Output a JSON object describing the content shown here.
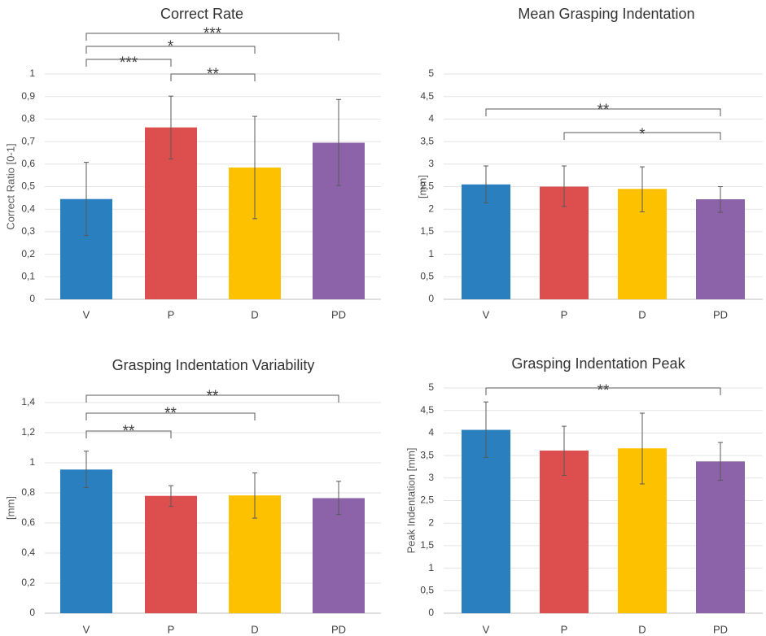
{
  "figure": {
    "colors": {
      "V": "#2a7fbf",
      "P": "#dd4e4f",
      "D": "#fec100",
      "PD": "#8c63a8"
    }
  },
  "chart_data": [
    {
      "type": "bar",
      "title": "Correct Rate",
      "xlabel": "",
      "ylabel": "Correct Ratio [0-1]",
      "categories": [
        "V",
        "P",
        "D",
        "PD"
      ],
      "values": [
        0.445,
        0.763,
        0.585,
        0.695
      ],
      "error_low": [
        0.283,
        0.623,
        0.358,
        0.505
      ],
      "error_high": [
        0.608,
        0.902,
        0.812,
        0.887
      ],
      "ylim": [
        0,
        1
      ],
      "yticks": [
        "0",
        "0,1",
        "0,2",
        "0,3",
        "0,4",
        "0,5",
        "0,6",
        "0,7",
        "0,8",
        "0,9",
        "1"
      ],
      "grid": true,
      "significance": [
        {
          "from": "V",
          "to": "PD",
          "label": "***"
        },
        {
          "from": "V",
          "to": "D",
          "label": "*"
        },
        {
          "from": "V",
          "to": "P",
          "label": "***"
        },
        {
          "from": "P",
          "to": "D",
          "label": "**"
        }
      ]
    },
    {
      "type": "bar",
      "title": "Mean Grasping Indentation",
      "xlabel": "",
      "ylabel": "[mm]",
      "categories": [
        "V",
        "P",
        "D",
        "PD"
      ],
      "values": [
        2.55,
        2.5,
        2.45,
        2.22
      ],
      "error_low": [
        2.14,
        2.06,
        1.94,
        1.93
      ],
      "error_high": [
        2.96,
        2.96,
        2.94,
        2.5
      ],
      "ylim": [
        0,
        5
      ],
      "yticks": [
        "0",
        "0,5",
        "1",
        "1,5",
        "2",
        "2,5",
        "3",
        "3,5",
        "4",
        "4,5",
        "5"
      ],
      "grid": true,
      "significance": [
        {
          "from": "V",
          "to": "PD",
          "label": "**"
        },
        {
          "from": "P",
          "to": "PD",
          "label": "*"
        }
      ]
    },
    {
      "type": "bar",
      "title": "Grasping Indentation Variability",
      "xlabel": "",
      "ylabel": "[mm]",
      "categories": [
        "V",
        "P",
        "D",
        "PD"
      ],
      "values": [
        0.955,
        0.78,
        0.783,
        0.765
      ],
      "error_low": [
        0.835,
        0.71,
        0.632,
        0.656
      ],
      "error_high": [
        1.077,
        0.848,
        0.933,
        0.877
      ],
      "ylim": [
        0,
        1.4
      ],
      "yticks": [
        "0",
        "0,2",
        "0,4",
        "0,6",
        "0,8",
        "1",
        "1,2",
        "1,4"
      ],
      "grid": true,
      "significance": [
        {
          "from": "V",
          "to": "PD",
          "label": "**"
        },
        {
          "from": "V",
          "to": "D",
          "label": "**"
        },
        {
          "from": "V",
          "to": "P",
          "label": "**"
        }
      ]
    },
    {
      "type": "bar",
      "title": "Grasping Indentation Peak",
      "xlabel": "",
      "ylabel": "Peak Indentation [mm]",
      "categories": [
        "V",
        "P",
        "D",
        "PD"
      ],
      "values": [
        4.07,
        3.61,
        3.66,
        3.37
      ],
      "error_low": [
        3.46,
        3.06,
        2.87,
        2.95
      ],
      "error_high": [
        4.69,
        4.15,
        4.44,
        3.79
      ],
      "ylim": [
        0,
        5
      ],
      "yticks": [
        "0",
        "0,5",
        "1",
        "1,5",
        "2",
        "2,5",
        "3",
        "3,5",
        "4",
        "4,5",
        "5"
      ],
      "grid": true,
      "significance": [
        {
          "from": "V",
          "to": "PD",
          "label": "**"
        }
      ]
    }
  ]
}
